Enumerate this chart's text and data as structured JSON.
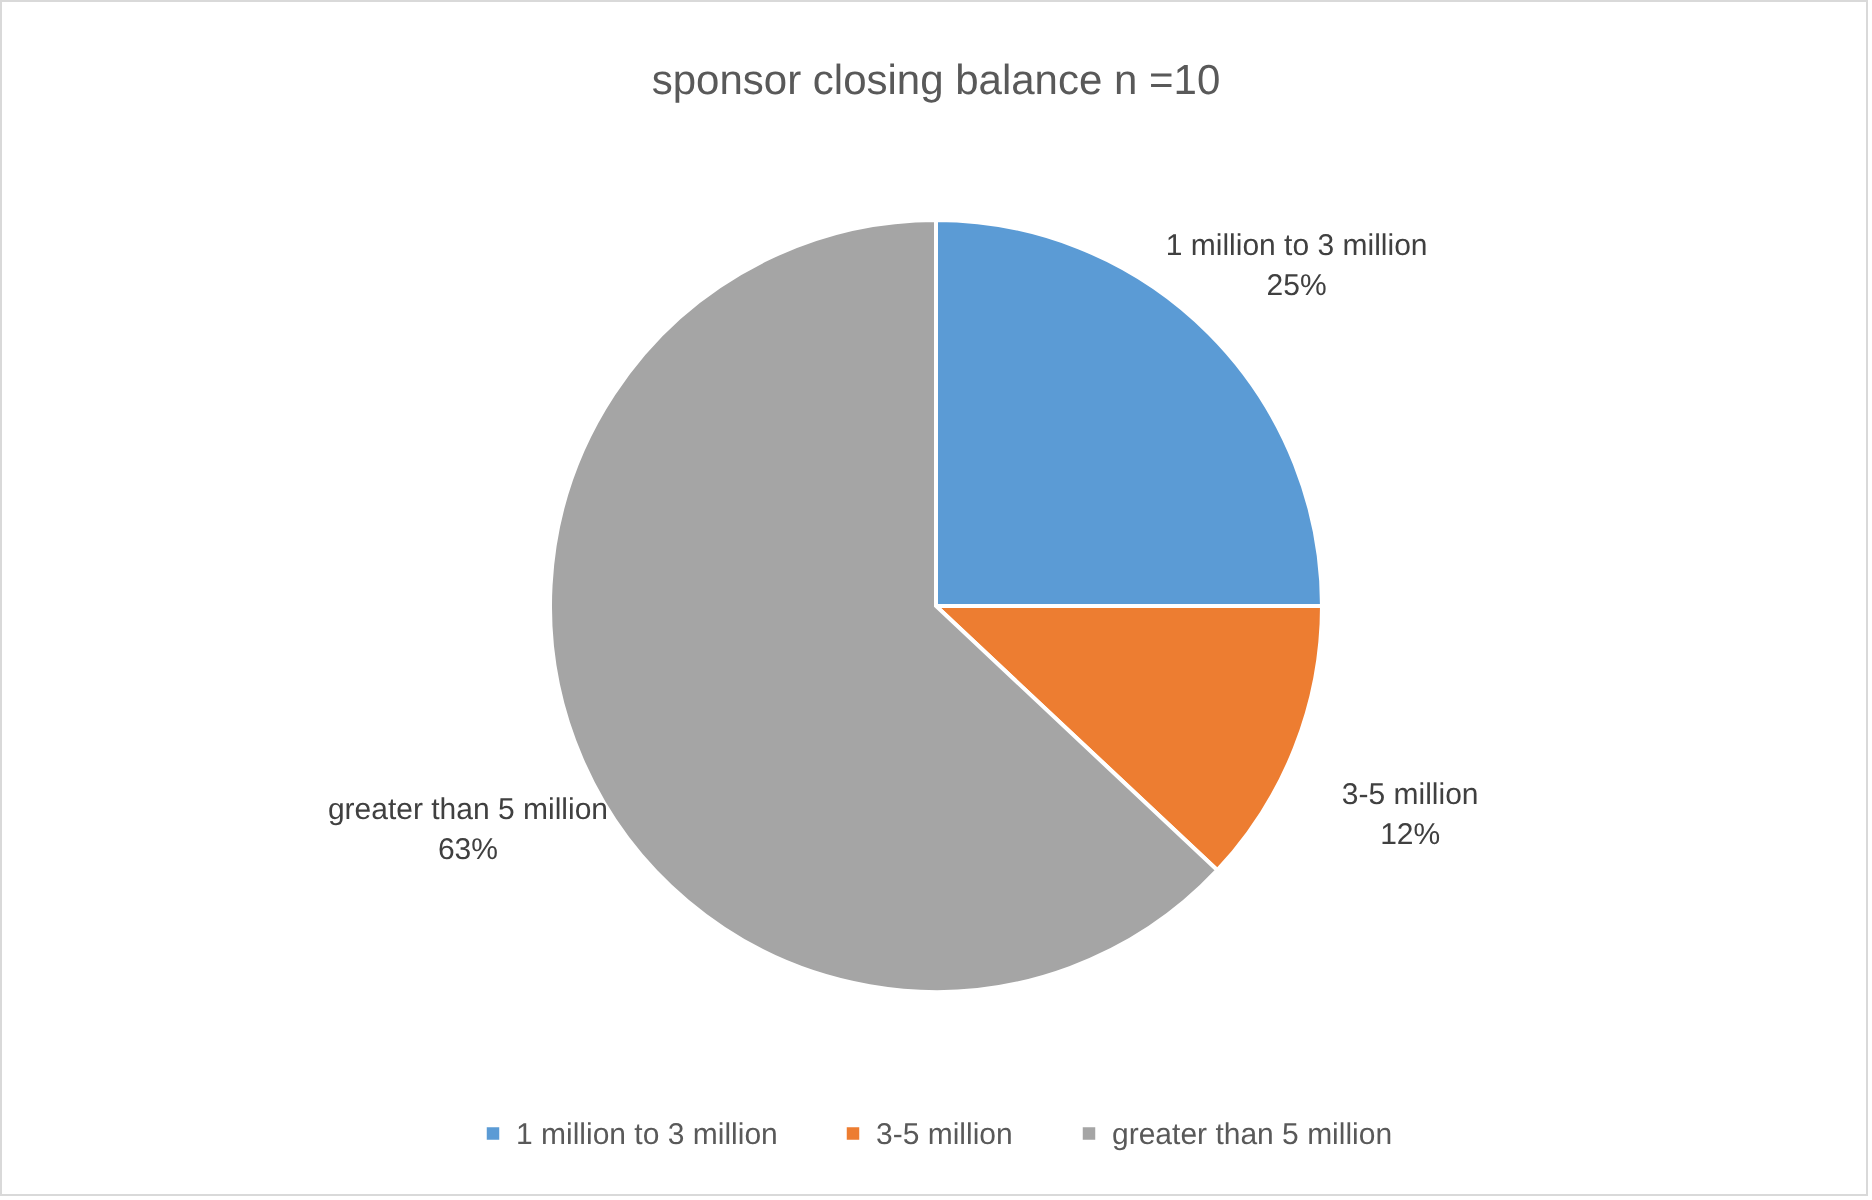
{
  "chart_data": {
    "type": "pie",
    "title": "sponsor closing balance n =10",
    "categories": [
      "1 million to 3 million",
      "3-5 million",
      "greater than 5 million"
    ],
    "values": [
      25,
      12,
      63
    ],
    "colors": [
      "#5b9bd5",
      "#ed7d31",
      "#a5a5a5"
    ],
    "value_labels": [
      "25%",
      "12%",
      "63%"
    ],
    "legend": "bottom"
  }
}
